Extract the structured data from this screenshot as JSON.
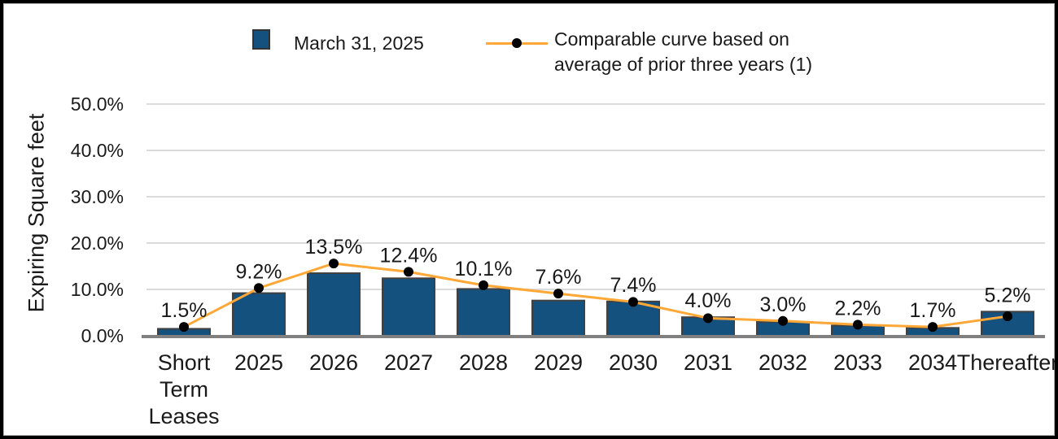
{
  "chart_data": {
    "type": "bar",
    "title": "",
    "ylabel": "Expiring Square feet",
    "xlabel": "",
    "categories": [
      "Short Term Leases",
      "2025",
      "2026",
      "2027",
      "2028",
      "2029",
      "2030",
      "2031",
      "2032",
      "2033",
      "2034",
      "Thereafter"
    ],
    "series": [
      {
        "name": "March 31, 2025",
        "type": "bar",
        "values": [
          1.5,
          9.2,
          13.5,
          12.4,
          10.1,
          7.6,
          7.4,
          4.0,
          3.0,
          2.2,
          1.7,
          5.2
        ],
        "labels": [
          "1.5%",
          "9.2%",
          "13.5%",
          "12.4%",
          "10.1%",
          "7.6%",
          "7.4%",
          "4.0%",
          "3.0%",
          "2.2%",
          "1.7%",
          "5.2%"
        ],
        "color": "#15517F",
        "border_color": "#404040"
      },
      {
        "name": "Comparable curve based on average of prior three years (1)",
        "type": "line",
        "values": [
          1.9,
          10.3,
          15.6,
          13.8,
          10.9,
          9.1,
          7.3,
          3.8,
          3.2,
          2.4,
          1.9,
          4.2
        ],
        "values_estimated": true,
        "color": "#FFA838",
        "marker_color": "#000000"
      }
    ],
    "yticks": [
      "0.0%",
      "10.0%",
      "20.0%",
      "30.0%",
      "40.0%",
      "50.0%"
    ],
    "ylim": [
      0,
      50
    ],
    "grid": true,
    "legend_position": "top",
    "colors": {
      "gridline": "#DBDBDB",
      "axis": "#808080",
      "text": "#1A1A1A",
      "background": "#FFFFFF"
    }
  }
}
